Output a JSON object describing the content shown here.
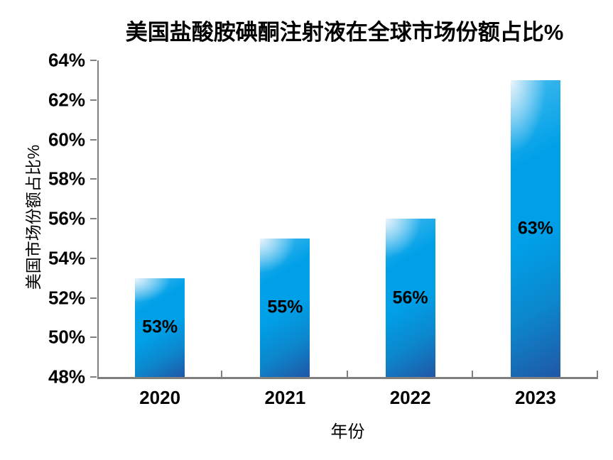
{
  "chart_data": {
    "type": "bar",
    "title": "美国盐酸胺碘酮注射液在全球市场份额占比%",
    "xlabel": "年份",
    "ylabel": "美国市场份额占比%",
    "categories": [
      "2020",
      "2021",
      "2022",
      "2023"
    ],
    "values": [
      53,
      55,
      56,
      63
    ],
    "value_labels": [
      "53%",
      "55%",
      "56%",
      "63%"
    ],
    "value_label_position": "center-inside",
    "ylim": [
      48,
      64
    ],
    "y_tick_step": 2,
    "y_tick_labels": [
      "48%",
      "50%",
      "52%",
      "54%",
      "56%",
      "58%",
      "60%",
      "62%",
      "64%"
    ],
    "grid": false,
    "legend": "none"
  },
  "colors": {
    "bar_highlight": "#e9f4fb",
    "bar_light": "#45bbee",
    "bar_main": "#00a0e8",
    "bar_mid": "#0c86cc",
    "bar_dark": "#2057a6",
    "axis": "#7f7f7f",
    "text": "#000000",
    "background": "#ffffff"
  }
}
